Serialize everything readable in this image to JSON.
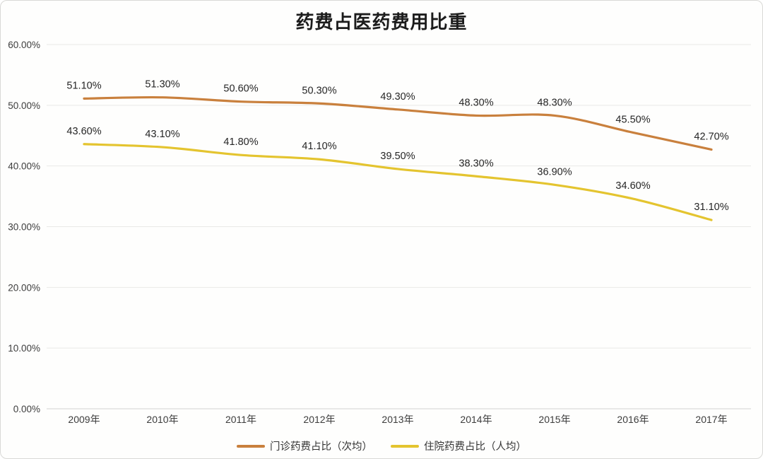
{
  "chart_data": {
    "type": "line",
    "title": "药费占医药费用比重",
    "categories": [
      "2009年",
      "2010年",
      "2011年",
      "2012年",
      "2013年",
      "2014年",
      "2015年",
      "2016年",
      "2017年"
    ],
    "series": [
      {
        "name": "门诊药费占比（次均）",
        "color": "#c9803d",
        "values": [
          51.1,
          51.3,
          50.6,
          50.3,
          49.3,
          48.3,
          48.3,
          45.5,
          42.7
        ],
        "labels": [
          "51.10%",
          "51.30%",
          "50.60%",
          "50.30%",
          "49.30%",
          "48.30%",
          "48.30%",
          "45.50%",
          "42.70%"
        ]
      },
      {
        "name": "住院药费占比（人均）",
        "color": "#e4c42f",
        "values": [
          43.6,
          43.1,
          41.8,
          41.1,
          39.5,
          38.3,
          36.9,
          34.6,
          31.1
        ],
        "labels": [
          "43.60%",
          "43.10%",
          "41.80%",
          "41.10%",
          "39.50%",
          "38.30%",
          "36.90%",
          "34.60%",
          "31.10%"
        ]
      }
    ],
    "ylim": [
      0,
      60
    ],
    "ytick_step": 10,
    "ytick_labels": [
      "0.00%",
      "10.00%",
      "20.00%",
      "30.00%",
      "40.00%",
      "50.00%",
      "60.00%"
    ],
    "grid": "horizontal",
    "data_labels": true,
    "legend_position": "bottom",
    "line_style": "smooth"
  }
}
